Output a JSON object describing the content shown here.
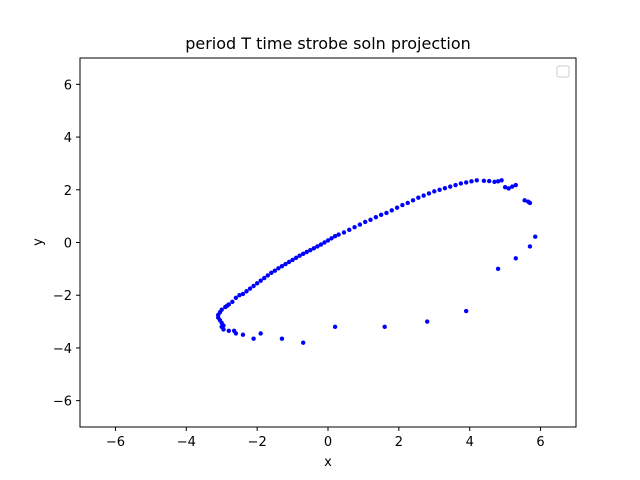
{
  "chart_data": {
    "type": "scatter",
    "title": "period T time strobe soln projection",
    "xlabel": "x",
    "ylabel": "y",
    "xlim": [
      -7,
      7
    ],
    "ylim": [
      -7,
      7
    ],
    "xticks": [
      -6,
      -4,
      -2,
      0,
      2,
      4,
      6
    ],
    "yticks": [
      -6,
      -4,
      -2,
      0,
      2,
      4,
      6
    ],
    "xtick_labels": [
      "−6",
      "−4",
      "−2",
      "0",
      "2",
      "4",
      "6"
    ],
    "ytick_labels": [
      "−6",
      "−4",
      "−2",
      "0",
      "2",
      "4",
      "6"
    ],
    "grid": false,
    "legend": {
      "placement": "upper right",
      "entries": []
    },
    "marker_color": "#0000ff",
    "series": [
      {
        "points": [
          [
            -3.1,
            -2.85
          ],
          [
            -3.1,
            -2.75
          ],
          [
            -3.05,
            -2.95
          ],
          [
            -3.05,
            -2.65
          ],
          [
            -3.0,
            -3.05
          ],
          [
            -3.0,
            -2.55
          ],
          [
            -2.95,
            -3.15
          ],
          [
            -2.9,
            -2.45
          ],
          [
            -2.85,
            -2.4
          ],
          [
            -2.8,
            -2.35
          ],
          [
            -2.7,
            -2.25
          ],
          [
            -2.6,
            -2.1
          ],
          [
            -2.5,
            -2.0
          ],
          [
            -2.4,
            -1.95
          ],
          [
            -2.3,
            -1.85
          ],
          [
            -2.2,
            -1.75
          ],
          [
            -2.1,
            -1.65
          ],
          [
            -2.0,
            -1.55
          ],
          [
            -1.9,
            -1.45
          ],
          [
            -1.8,
            -1.35
          ],
          [
            -1.7,
            -1.25
          ],
          [
            -1.6,
            -1.15
          ],
          [
            -1.5,
            -1.07
          ],
          [
            -1.4,
            -0.98
          ],
          [
            -1.3,
            -0.9
          ],
          [
            -1.2,
            -0.82
          ],
          [
            -1.1,
            -0.74
          ],
          [
            -1.0,
            -0.66
          ],
          [
            -0.9,
            -0.58
          ],
          [
            -0.8,
            -0.5
          ],
          [
            -0.7,
            -0.43
          ],
          [
            -0.6,
            -0.36
          ],
          [
            -0.5,
            -0.29
          ],
          [
            -0.4,
            -0.22
          ],
          [
            -0.3,
            -0.15
          ],
          [
            -0.2,
            -0.08
          ],
          [
            -0.1,
            0.0
          ],
          [
            0.0,
            0.08
          ],
          [
            0.1,
            0.16
          ],
          [
            0.2,
            0.24
          ],
          [
            0.3,
            0.3
          ],
          [
            0.45,
            0.38
          ],
          [
            0.6,
            0.48
          ],
          [
            0.75,
            0.58
          ],
          [
            0.9,
            0.68
          ],
          [
            1.05,
            0.78
          ],
          [
            1.2,
            0.86
          ],
          [
            1.35,
            0.96
          ],
          [
            1.5,
            1.05
          ],
          [
            1.65,
            1.12
          ],
          [
            1.8,
            1.22
          ],
          [
            1.95,
            1.32
          ],
          [
            2.1,
            1.42
          ],
          [
            2.25,
            1.5
          ],
          [
            2.4,
            1.6
          ],
          [
            2.55,
            1.7
          ],
          [
            2.7,
            1.78
          ],
          [
            2.85,
            1.86
          ],
          [
            3.0,
            1.94
          ],
          [
            3.15,
            2.0
          ],
          [
            3.3,
            2.06
          ],
          [
            3.45,
            2.12
          ],
          [
            3.6,
            2.18
          ],
          [
            3.75,
            2.24
          ],
          [
            3.9,
            2.28
          ],
          [
            4.05,
            2.32
          ],
          [
            4.2,
            2.36
          ],
          [
            4.4,
            2.34
          ],
          [
            4.55,
            2.33
          ],
          [
            4.7,
            2.3
          ],
          [
            4.8,
            2.32
          ],
          [
            4.9,
            2.36
          ],
          [
            5.0,
            2.1
          ],
          [
            5.1,
            2.05
          ],
          [
            5.2,
            2.12
          ],
          [
            5.3,
            2.18
          ],
          [
            5.55,
            1.6
          ],
          [
            5.65,
            1.55
          ],
          [
            5.7,
            1.5
          ],
          [
            5.85,
            0.22
          ],
          [
            5.7,
            -0.15
          ],
          [
            5.3,
            -0.6
          ],
          [
            4.8,
            -1.0
          ],
          [
            3.9,
            -2.6
          ],
          [
            2.8,
            -3.0
          ],
          [
            1.6,
            -3.2
          ],
          [
            0.2,
            -3.2
          ],
          [
            -0.7,
            -3.8
          ],
          [
            -1.3,
            -3.65
          ],
          [
            -1.9,
            -3.45
          ],
          [
            -2.1,
            -3.65
          ],
          [
            -2.4,
            -3.5
          ],
          [
            -2.6,
            -3.45
          ],
          [
            -2.65,
            -3.35
          ],
          [
            -2.8,
            -3.35
          ],
          [
            -2.95,
            -3.3
          ],
          [
            -3.0,
            -3.2
          ]
        ]
      }
    ]
  }
}
